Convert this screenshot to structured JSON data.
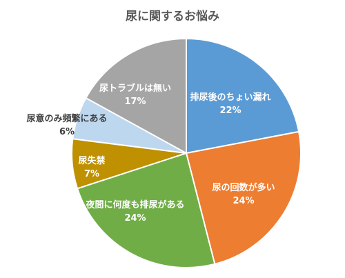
{
  "chart_data": {
    "type": "pie",
    "title": "尿に関するお悩み",
    "slices": [
      {
        "label": "排尿後のちょい漏れ",
        "value": 22,
        "value_label": "22%",
        "color": "#5b9bd5"
      },
      {
        "label": "尿の回数が多い",
        "value": 24,
        "value_label": "24%",
        "color": "#ed7d31"
      },
      {
        "label": "夜間に何度も排尿がある",
        "value": 24,
        "value_label": "24%",
        "color": "#70ad47"
      },
      {
        "label": "尿失禁",
        "value": 7,
        "value_label": "7%",
        "color": "#bf9000"
      },
      {
        "label": "尿意のみ頻繁にある",
        "value": 6,
        "value_label": "6%",
        "color": "#bdd7ee"
      },
      {
        "label": "尿トラブルは無い",
        "value": 17,
        "value_label": "17%",
        "color": "#a5a5a5"
      }
    ],
    "start": "12 o'clock",
    "direction": "clockwise",
    "legend": "none"
  }
}
